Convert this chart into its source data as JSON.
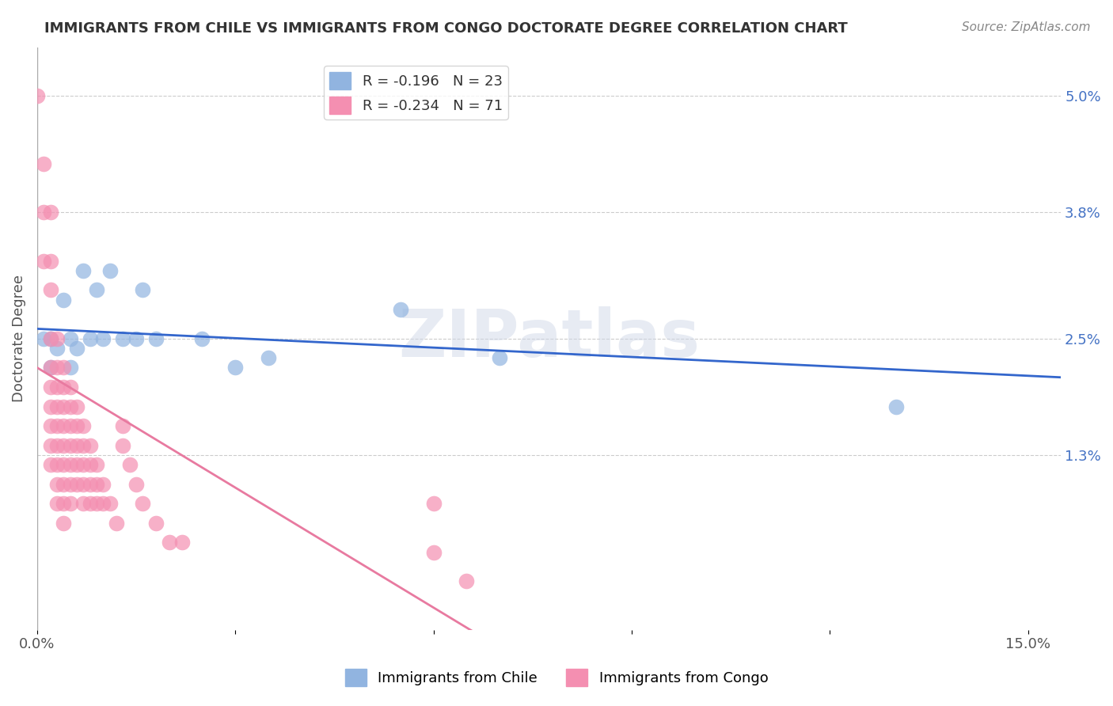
{
  "title": "IMMIGRANTS FROM CHILE VS IMMIGRANTS FROM CONGO DOCTORATE DEGREE CORRELATION CHART",
  "source": "Source: ZipAtlas.com",
  "xlabel_bottom": "",
  "ylabel": "Doctorate Degree",
  "x_ticks": [
    0.0,
    0.03,
    0.06,
    0.09,
    0.12,
    0.15
  ],
  "x_tick_labels": [
    "0.0%",
    "",
    "",
    "",
    "",
    "15.0%"
  ],
  "y_tick_labels": [
    "5.0%",
    "3.8%",
    "2.5%",
    "1.3%"
  ],
  "y_tick_values": [
    0.05,
    0.038,
    0.025,
    0.013
  ],
  "xlim": [
    0.0,
    0.155
  ],
  "ylim": [
    -0.005,
    0.055
  ],
  "chile_R": "-0.196",
  "chile_N": "23",
  "congo_R": "-0.234",
  "congo_N": "71",
  "chile_color": "#91b4e0",
  "congo_color": "#f48fb1",
  "chile_line_color": "#3366cc",
  "congo_line_color": "#e87aa0",
  "background_color": "#ffffff",
  "grid_color": "#cccccc",
  "watermark": "ZIPatlas",
  "legend_label_chile": "Immigrants from Chile",
  "legend_label_congo": "Immigrants from Congo",
  "chile_points": [
    [
      0.001,
      0.025
    ],
    [
      0.002,
      0.025
    ],
    [
      0.002,
      0.022
    ],
    [
      0.003,
      0.024
    ],
    [
      0.004,
      0.029
    ],
    [
      0.005,
      0.025
    ],
    [
      0.005,
      0.022
    ],
    [
      0.006,
      0.024
    ],
    [
      0.007,
      0.032
    ],
    [
      0.008,
      0.025
    ],
    [
      0.009,
      0.03
    ],
    [
      0.01,
      0.025
    ],
    [
      0.011,
      0.032
    ],
    [
      0.013,
      0.025
    ],
    [
      0.015,
      0.025
    ],
    [
      0.016,
      0.03
    ],
    [
      0.018,
      0.025
    ],
    [
      0.025,
      0.025
    ],
    [
      0.03,
      0.022
    ],
    [
      0.035,
      0.023
    ],
    [
      0.055,
      0.028
    ],
    [
      0.07,
      0.023
    ],
    [
      0.13,
      0.018
    ]
  ],
  "congo_points": [
    [
      0.0,
      0.05
    ],
    [
      0.001,
      0.043
    ],
    [
      0.001,
      0.038
    ],
    [
      0.001,
      0.033
    ],
    [
      0.002,
      0.038
    ],
    [
      0.002,
      0.033
    ],
    [
      0.002,
      0.03
    ],
    [
      0.002,
      0.025
    ],
    [
      0.002,
      0.022
    ],
    [
      0.002,
      0.02
    ],
    [
      0.002,
      0.018
    ],
    [
      0.002,
      0.016
    ],
    [
      0.002,
      0.014
    ],
    [
      0.002,
      0.012
    ],
    [
      0.003,
      0.025
    ],
    [
      0.003,
      0.022
    ],
    [
      0.003,
      0.02
    ],
    [
      0.003,
      0.018
    ],
    [
      0.003,
      0.016
    ],
    [
      0.003,
      0.014
    ],
    [
      0.003,
      0.012
    ],
    [
      0.003,
      0.01
    ],
    [
      0.003,
      0.008
    ],
    [
      0.004,
      0.022
    ],
    [
      0.004,
      0.02
    ],
    [
      0.004,
      0.018
    ],
    [
      0.004,
      0.016
    ],
    [
      0.004,
      0.014
    ],
    [
      0.004,
      0.012
    ],
    [
      0.004,
      0.01
    ],
    [
      0.004,
      0.008
    ],
    [
      0.004,
      0.006
    ],
    [
      0.005,
      0.02
    ],
    [
      0.005,
      0.018
    ],
    [
      0.005,
      0.016
    ],
    [
      0.005,
      0.014
    ],
    [
      0.005,
      0.012
    ],
    [
      0.005,
      0.01
    ],
    [
      0.005,
      0.008
    ],
    [
      0.006,
      0.018
    ],
    [
      0.006,
      0.016
    ],
    [
      0.006,
      0.014
    ],
    [
      0.006,
      0.012
    ],
    [
      0.006,
      0.01
    ],
    [
      0.007,
      0.016
    ],
    [
      0.007,
      0.014
    ],
    [
      0.007,
      0.012
    ],
    [
      0.007,
      0.01
    ],
    [
      0.007,
      0.008
    ],
    [
      0.008,
      0.014
    ],
    [
      0.008,
      0.012
    ],
    [
      0.008,
      0.01
    ],
    [
      0.008,
      0.008
    ],
    [
      0.009,
      0.012
    ],
    [
      0.009,
      0.01
    ],
    [
      0.009,
      0.008
    ],
    [
      0.01,
      0.01
    ],
    [
      0.01,
      0.008
    ],
    [
      0.011,
      0.008
    ],
    [
      0.012,
      0.006
    ],
    [
      0.013,
      0.016
    ],
    [
      0.013,
      0.014
    ],
    [
      0.014,
      0.012
    ],
    [
      0.015,
      0.01
    ],
    [
      0.016,
      0.008
    ],
    [
      0.018,
      0.006
    ],
    [
      0.02,
      0.004
    ],
    [
      0.022,
      0.004
    ],
    [
      0.06,
      0.003
    ],
    [
      0.06,
      0.008
    ],
    [
      0.065,
      0.0
    ]
  ]
}
